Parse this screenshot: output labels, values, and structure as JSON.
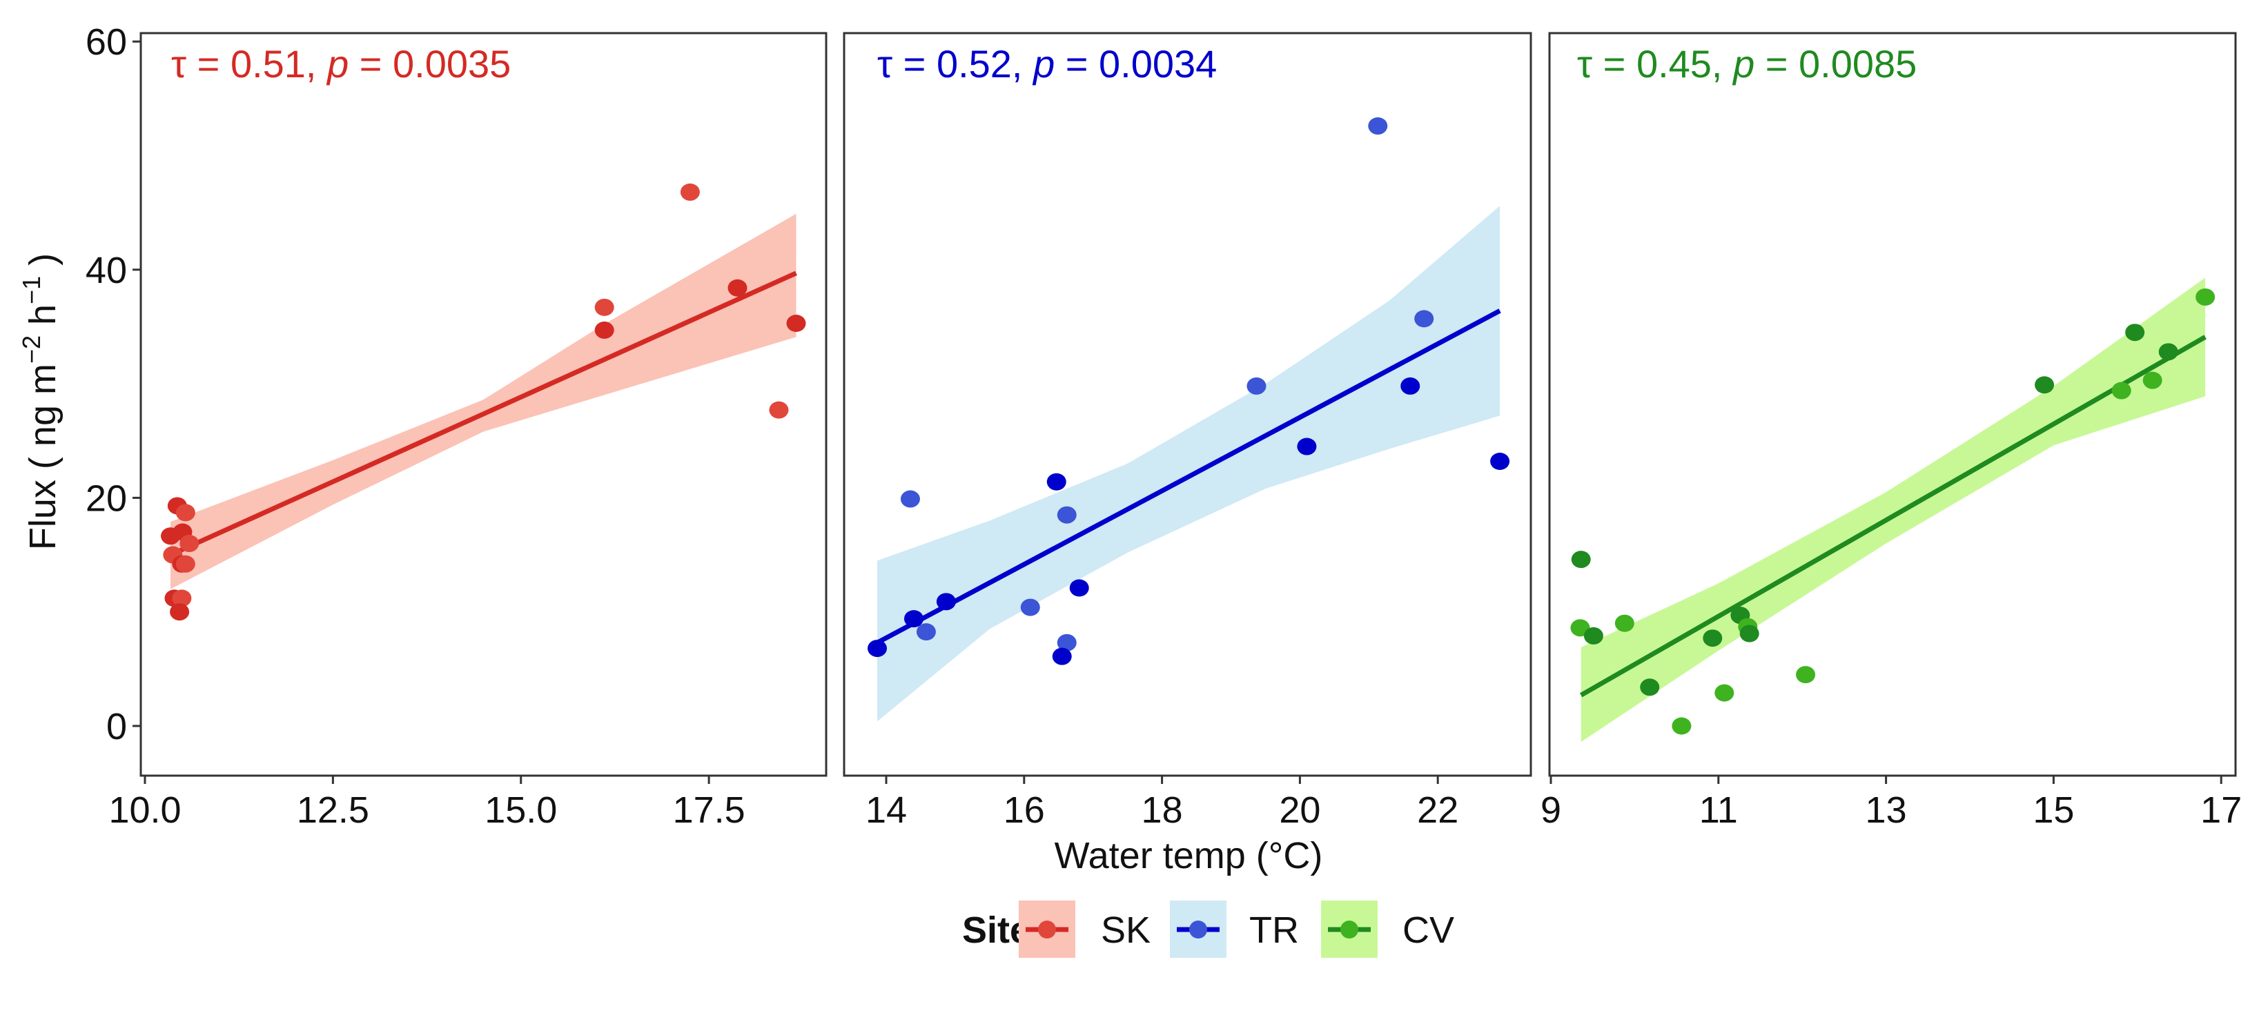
{
  "chart_data": {
    "type": "scatter",
    "xlabel": "Water temp (°C)",
    "ylabel": {
      "main": "Flux",
      "open": "( ng m",
      "sup1": "−2",
      "mid": " h",
      "sup2": "−1",
      "close": " )"
    },
    "ylim": [
      -5,
      61
    ],
    "yticks": [
      0,
      20,
      40,
      60
    ],
    "legend": {
      "title": "Site",
      "position": "bottom",
      "entries": [
        "SK",
        "TR",
        "CV"
      ]
    },
    "panels": [
      {
        "site": "SK",
        "colors": {
          "line": "#d42a24",
          "point": "#d42a24",
          "point_alt": "#e0473a",
          "band": "#fbc2b6"
        },
        "stat": {
          "tau_label": "τ",
          "tau": "0.51",
          "p_label": "p",
          "p": "0.0035"
        },
        "xlim": [
          9.95,
          19.06
        ],
        "xticks": [
          "10.0",
          "12.5",
          "15.0",
          "17.5"
        ],
        "points": [
          [
            10.34,
            16.65
          ],
          [
            10.37,
            15.0
          ],
          [
            10.43,
            19.3
          ],
          [
            10.54,
            18.7
          ],
          [
            10.5,
            17.0
          ],
          [
            10.59,
            16.0
          ],
          [
            10.49,
            14.2
          ],
          [
            10.54,
            14.2
          ],
          [
            10.39,
            11.2
          ],
          [
            10.49,
            11.2
          ],
          [
            10.46,
            10.0
          ],
          [
            16.11,
            36.7
          ],
          [
            16.11,
            34.7
          ],
          [
            17.25,
            46.8
          ],
          [
            17.88,
            38.4
          ],
          [
            18.43,
            27.7
          ],
          [
            18.66,
            35.3
          ]
        ],
        "fit": [
          [
            10.34,
            15.0
          ],
          [
            18.66,
            39.7
          ]
        ],
        "band": [
          [
            10.34,
            12.0,
            17.9
          ],
          [
            12.5,
            19.4,
            23.3
          ],
          [
            14.5,
            25.8,
            28.6
          ],
          [
            16.1,
            29.0,
            35.2
          ],
          [
            18.66,
            34.1,
            44.9
          ]
        ]
      },
      {
        "site": "TR",
        "colors": {
          "line": "#0000cc",
          "point": "#0000cc",
          "point_alt": "#3b55d6",
          "band": "#cfe9f5"
        },
        "stat": {
          "tau_label": "τ",
          "tau": "0.52",
          "p_label": "p",
          "p": "0.0034"
        },
        "xlim": [
          13.4,
          23.35
        ],
        "xticks": [
          "14",
          "16",
          "18",
          "20",
          "22"
        ],
        "points": [
          [
            13.87,
            6.8
          ],
          [
            14.35,
            19.9
          ],
          [
            14.4,
            9.4
          ],
          [
            14.58,
            8.25
          ],
          [
            14.87,
            10.9
          ],
          [
            16.09,
            10.4
          ],
          [
            16.47,
            21.4
          ],
          [
            16.62,
            18.5
          ],
          [
            16.8,
            12.1
          ],
          [
            16.62,
            7.3
          ],
          [
            16.55,
            6.1
          ],
          [
            19.37,
            29.8
          ],
          [
            20.1,
            24.5
          ],
          [
            21.13,
            52.6
          ],
          [
            21.6,
            29.8
          ],
          [
            21.8,
            35.7
          ],
          [
            22.9,
            23.2
          ]
        ],
        "fit": [
          [
            13.87,
            7.3
          ],
          [
            22.9,
            36.4
          ]
        ],
        "band": [
          [
            13.87,
            0.4,
            14.5
          ],
          [
            15.5,
            8.5,
            18.0
          ],
          [
            17.5,
            15.2,
            23.0
          ],
          [
            19.5,
            20.8,
            30.0
          ],
          [
            21.3,
            24.3,
            37.3
          ],
          [
            22.9,
            27.2,
            45.6
          ]
        ]
      },
      {
        "site": "CV",
        "colors": {
          "line": "#1f8a1f",
          "point": "#1f8a1f",
          "point_alt": "#3eb31f",
          "band": "#c8f896"
        },
        "stat": {
          "tau_label": "τ",
          "tau": "0.45",
          "p_label": "p",
          "p": "0.0085"
        },
        "xlim": [
          8.98,
          17.17
        ],
        "xticks": [
          "9",
          "11",
          "13",
          "15",
          "17"
        ],
        "points": [
          [
            9.36,
            14.6
          ],
          [
            9.35,
            8.6
          ],
          [
            9.51,
            7.9
          ],
          [
            9.88,
            9.0
          ],
          [
            10.18,
            3.4
          ],
          [
            10.56,
            0.0
          ],
          [
            10.93,
            7.7
          ],
          [
            11.07,
            2.9
          ],
          [
            11.26,
            9.7
          ],
          [
            11.35,
            8.7
          ],
          [
            11.37,
            8.1
          ],
          [
            12.04,
            4.5
          ],
          [
            14.89,
            29.9
          ],
          [
            15.81,
            29.4
          ],
          [
            15.97,
            34.5
          ],
          [
            16.18,
            30.3
          ],
          [
            16.37,
            32.8
          ],
          [
            16.81,
            37.6
          ]
        ],
        "fit": [
          [
            9.36,
            2.7
          ],
          [
            16.81,
            34.1
          ]
        ],
        "band": [
          [
            9.36,
            -1.4,
            6.9
          ],
          [
            11.0,
            6.6,
            12.5
          ],
          [
            13.0,
            16.0,
            20.5
          ],
          [
            15.0,
            24.6,
            29.8
          ],
          [
            16.81,
            28.9,
            39.3
          ]
        ]
      }
    ]
  }
}
